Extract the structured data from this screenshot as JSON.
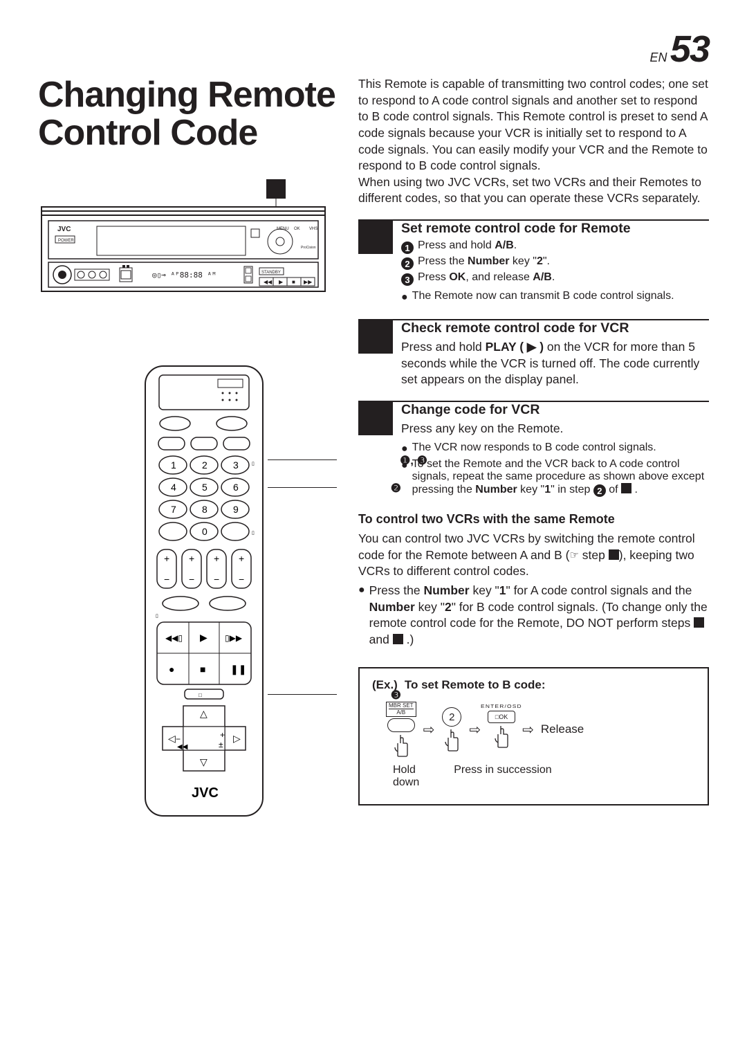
{
  "page": {
    "en_prefix": "EN",
    "number": "53"
  },
  "title": "Changing Remote Control Code",
  "intro": "This Remote is capable of transmitting two control codes; one set to respond to A code control signals and another set to respond to B code control signals. This Remote control is preset to send A code signals because your VCR is initially set to respond to A code signals. You can easily modify your VCR and the Remote to respond to B code control signals.\nWhen using two JVC VCRs, set two VCRs and their Remotes to different codes, so that you can operate these VCRs separately.",
  "sections": [
    {
      "title": "Set remote control code for Remote",
      "steps": [
        {
          "n": "1",
          "html": "Press and hold <b>A/B</b>."
        },
        {
          "n": "2",
          "html": "Press the <b>Number</b> key \"<b>2</b>\"."
        },
        {
          "n": "3",
          "html": "Press <b>OK</b>, and release <b>A/B</b>."
        }
      ],
      "bullets": [
        "The Remote now can transmit B code control signals."
      ]
    },
    {
      "title": "Check remote control code for VCR",
      "body_html": "Press and hold <b>PLAY ( ▶ )</b> on the VCR for more than 5 seconds while the VCR is turned off. The code currently set appears on the display panel."
    },
    {
      "title": "Change code for VCR",
      "body": "Press any key on the Remote.",
      "bullets": [
        "The VCR now responds to B code control signals.",
        "To set the Remote and the VCR back to A code control signals, repeat the same procedure as shown above except pressing the <b>Number</b> key \"<b>1</b>\" in step <span class=\"circled\" style=\"vertical-align:-2px;margin-top:0\">2</span> of <span class=\"inline-square\"></span> ."
      ]
    }
  ],
  "two_vcrs": {
    "heading": "To control two VCRs with the same Remote",
    "body_html": "You can control two JVC VCRs by switching the remote control code for the Remote between A and B (<span class=\"pointer-icon\">☞</span> step <span class=\"inline-square\"></span>), keeping two VCRs to different control codes.",
    "bullet_html": "Press the <b>Number</b> key \"<b>1</b>\" for A code control signals and the <b>Number</b> key \"<b>2</b>\" for B code control signals. (To change only the remote control code for the Remote, DO NOT perform steps <span class=\"inline-square\"></span> and <span class=\"inline-square\"></span> .)"
  },
  "example": {
    "prefix": "(Ex.)",
    "title": "To set Remote to B code:",
    "mbr_label": "MBR SET",
    "ab_label": "A/B",
    "key_two": "2",
    "ok_label_top": "ENTER/OSD",
    "ok_label": "□OK",
    "release": "Release",
    "hold_down": "Hold\ndown",
    "press_succ": "Press in succession"
  },
  "remote_brand": "JVC",
  "vcr_brand": "JVC",
  "callouts": {
    "top": "❶, ❸",
    "mid": "❷",
    "bottom": "❸"
  }
}
